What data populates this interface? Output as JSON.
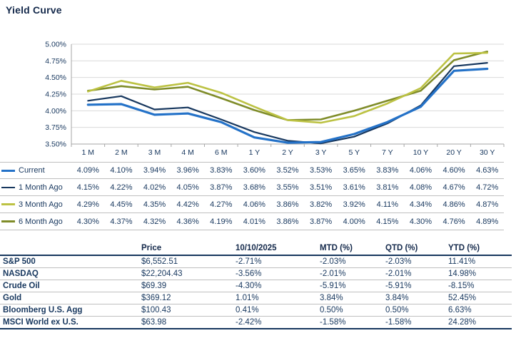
{
  "title": "Yield Curve",
  "theme": {
    "navy": "#17375E",
    "grid": "#D9D9D9",
    "separator": "#BFBFBF",
    "axis": "#A6A6A6"
  },
  "chart_data": {
    "type": "line",
    "title": "Yield Curve",
    "categories": [
      "1 M",
      "2 M",
      "3 M",
      "4 M",
      "6 M",
      "1 Y",
      "2 Y",
      "3 Y",
      "5 Y",
      "7 Y",
      "10 Y",
      "20 Y",
      "30 Y"
    ],
    "series": [
      {
        "name": "Current",
        "color": "#2472C8",
        "width": 3.2,
        "values": [
          4.09,
          4.1,
          3.94,
          3.96,
          3.83,
          3.6,
          3.52,
          3.53,
          3.65,
          3.83,
          4.06,
          4.6,
          4.63
        ]
      },
      {
        "name": "1 Month Ago",
        "color": "#17375E",
        "width": 2.2,
        "values": [
          4.15,
          4.22,
          4.02,
          4.05,
          3.87,
          3.68,
          3.55,
          3.51,
          3.61,
          3.81,
          4.08,
          4.67,
          4.72
        ]
      },
      {
        "name": "3 Month Ago",
        "color": "#BCC243",
        "width": 2.6,
        "values": [
          4.29,
          4.45,
          4.35,
          4.42,
          4.27,
          4.06,
          3.86,
          3.82,
          3.92,
          4.11,
          4.34,
          4.86,
          4.87
        ]
      },
      {
        "name": "6 Month Ago",
        "color": "#7F8C29",
        "width": 2.6,
        "values": [
          4.3,
          4.37,
          4.32,
          4.36,
          4.19,
          4.01,
          3.86,
          3.87,
          4.0,
          4.15,
          4.3,
          4.76,
          4.89
        ]
      }
    ],
    "ylim": [
      3.5,
      5.0
    ],
    "ytick_labels": [
      "5.00%",
      "4.75%",
      "4.50%",
      "4.25%",
      "4.00%",
      "3.75%",
      "3.50%"
    ],
    "grid": true,
    "legend_position": "bottom-table"
  },
  "market_table": {
    "headers": [
      "",
      "Price",
      "10/10/2025",
      "MTD (%)",
      "QTD (%)",
      "YTD (%)"
    ],
    "rows": [
      {
        "name": "S&P 500",
        "values": [
          "$6,552.51",
          "-2.71%",
          "-2.03%",
          "-2.03%",
          "11.41%"
        ]
      },
      {
        "name": "NASDAQ",
        "values": [
          "$22,204.43",
          "-3.56%",
          "-2.01%",
          "-2.01%",
          "14.98%"
        ]
      },
      {
        "name": "Crude Oil",
        "values": [
          "$69.39",
          "-4.30%",
          "-5.91%",
          "-5.91%",
          "-8.15%"
        ]
      },
      {
        "name": "Gold",
        "values": [
          "$369.12",
          "1.01%",
          "3.84%",
          "3.84%",
          "52.45%"
        ]
      },
      {
        "name": "Bloomberg U.S. Agg",
        "values": [
          "$100.43",
          "0.41%",
          "0.50%",
          "0.50%",
          "6.63%"
        ]
      },
      {
        "name": "MSCI World ex U.S.",
        "values": [
          "$63.98",
          "-2.42%",
          "-1.58%",
          "-1.58%",
          "24.28%"
        ]
      }
    ]
  }
}
